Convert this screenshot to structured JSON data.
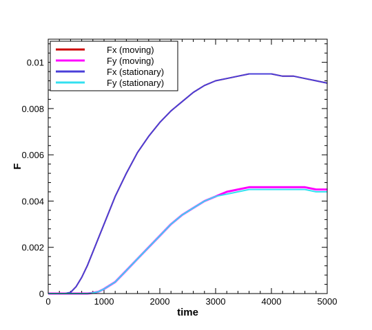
{
  "chart_data": {
    "type": "line",
    "xlabel": "time",
    "ylabel": "F",
    "xlim": [
      0,
      5000
    ],
    "ylim": [
      0,
      0.011
    ],
    "xticks": [
      0,
      1000,
      2000,
      3000,
      4000,
      5000
    ],
    "xtick_labels": [
      "0",
      "1000",
      "2000",
      "3000",
      "4000",
      "5000"
    ],
    "yticks": [
      0,
      0.002,
      0.004,
      0.006,
      0.008,
      0.01
    ],
    "ytick_labels": [
      "0",
      "0.002",
      "0.004",
      "0.006",
      "0.008",
      "0.01"
    ],
    "grid": false,
    "legend_position": "top-left",
    "series": [
      {
        "name": "Fx (moving)",
        "color": "#cc0000",
        "x": [
          0,
          300,
          400,
          500,
          600,
          700,
          800,
          900,
          1000,
          1200,
          1400,
          1600,
          1800,
          2000,
          2200,
          2400,
          2600,
          2800,
          3000,
          3200,
          3400,
          3600,
          3800,
          4000,
          4200,
          4400,
          4600,
          4800,
          5000
        ],
        "y": [
          0,
          0,
          5e-05,
          0.0003,
          0.0007,
          0.0012,
          0.0018,
          0.0024,
          0.003,
          0.0042,
          0.0052,
          0.0061,
          0.0068,
          0.0074,
          0.0079,
          0.0083,
          0.0087,
          0.009,
          0.0092,
          0.0093,
          0.0094,
          0.0095,
          0.0095,
          0.0095,
          0.0094,
          0.0094,
          0.0093,
          0.0092,
          0.0091
        ]
      },
      {
        "name": "Fy (moving)",
        "color": "#ff00ff",
        "x": [
          0,
          700,
          800,
          900,
          1000,
          1200,
          1400,
          1600,
          1800,
          2000,
          2200,
          2400,
          2600,
          2800,
          3000,
          3200,
          3400,
          3600,
          3800,
          4000,
          4200,
          4400,
          4600,
          4800,
          5000
        ],
        "y": [
          0,
          0,
          3e-05,
          8e-05,
          0.0002,
          0.0005,
          0.001,
          0.0015,
          0.002,
          0.0025,
          0.003,
          0.0034,
          0.0037,
          0.004,
          0.0042,
          0.0044,
          0.0045,
          0.0046,
          0.0046,
          0.0046,
          0.0046,
          0.0046,
          0.0046,
          0.0045,
          0.0045
        ]
      },
      {
        "name": "Fx (stationary)",
        "color": "#4a3fd8",
        "x": [
          0,
          300,
          400,
          500,
          600,
          700,
          800,
          900,
          1000,
          1200,
          1400,
          1600,
          1800,
          2000,
          2200,
          2400,
          2600,
          2800,
          3000,
          3200,
          3400,
          3600,
          3800,
          4000,
          4200,
          4400,
          4600,
          4800,
          5000
        ],
        "y": [
          0,
          0,
          5e-05,
          0.0003,
          0.0007,
          0.0012,
          0.0018,
          0.0024,
          0.003,
          0.0042,
          0.0052,
          0.0061,
          0.0068,
          0.0074,
          0.0079,
          0.0083,
          0.0087,
          0.009,
          0.0092,
          0.0093,
          0.0094,
          0.0095,
          0.0095,
          0.0095,
          0.0094,
          0.0094,
          0.0093,
          0.0092,
          0.0091
        ]
      },
      {
        "name": "Fy (stationary)",
        "color": "#33e0f0",
        "x": [
          0,
          700,
          800,
          900,
          1000,
          1200,
          1400,
          1600,
          1800,
          2000,
          2200,
          2400,
          2600,
          2800,
          3000,
          3200,
          3400,
          3600,
          3800,
          4000,
          4200,
          4400,
          4600,
          4800,
          5000
        ],
        "y": [
          0,
          0,
          3e-05,
          8e-05,
          0.0002,
          0.0005,
          0.001,
          0.0015,
          0.002,
          0.0025,
          0.003,
          0.0034,
          0.0037,
          0.004,
          0.0042,
          0.0043,
          0.0044,
          0.0045,
          0.0045,
          0.0045,
          0.0045,
          0.0045,
          0.0045,
          0.0044,
          0.0044
        ]
      }
    ]
  }
}
